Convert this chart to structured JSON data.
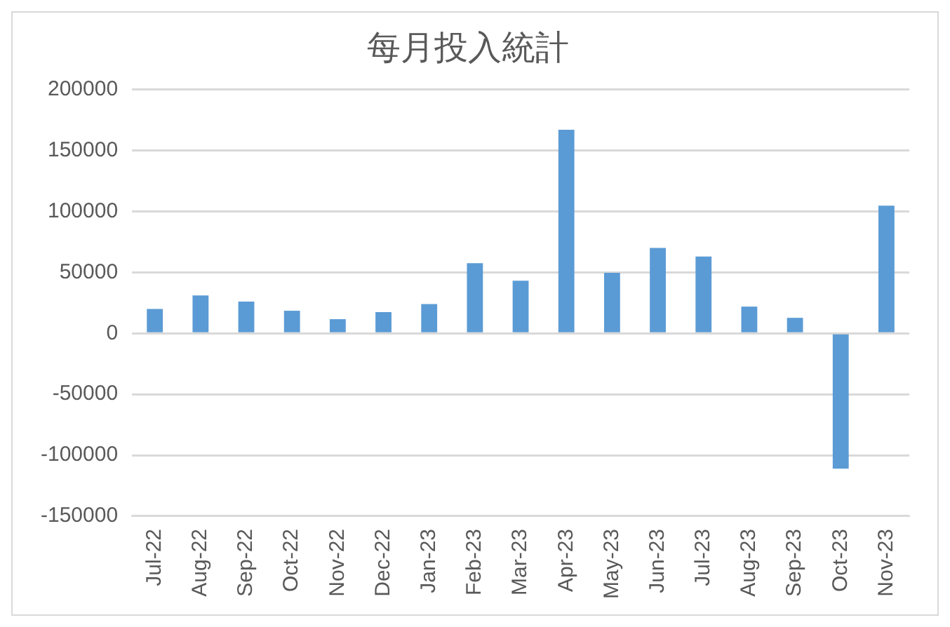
{
  "chart_data": {
    "type": "bar",
    "title": "每月投入統計",
    "categories": [
      "Jul-22",
      "Aug-22",
      "Sep-22",
      "Oct-22",
      "Nov-22",
      "Dec-22",
      "Jan-23",
      "Feb-23",
      "Mar-23",
      "Apr-23",
      "May-23",
      "Jun-23",
      "Jul-23",
      "Aug-23",
      "Sep-23",
      "Oct-23",
      "Nov-23"
    ],
    "values": [
      20000,
      31000,
      26000,
      18500,
      11600,
      17400,
      24000,
      57500,
      43100,
      167000,
      49600,
      70100,
      63000,
      21900,
      12700,
      -111000,
      104700
    ],
    "color": "#5b9bd5",
    "ylim": [
      -150000,
      200000
    ],
    "yticks": [
      -150000,
      -100000,
      -50000,
      0,
      50000,
      100000,
      150000,
      200000
    ],
    "grid": "y",
    "legend": false
  }
}
